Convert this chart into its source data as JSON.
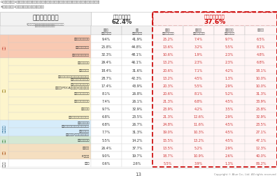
{
  "title_line1": "Q.新入社員時代（1年間）に受講してきた研修（自社・人事部門主催）について、日々の仕事への実践度合いをお聞かせください。",
  "title_line2": "※新人社員時代（1年間）を振り返りお聞かせください。",
  "col_header_left": "仕事への実践度",
  "col_header_sub1": "※各研修プログラム後の効果測定を個人の能力に転化した場合の合計平均",
  "col_header_sub2": "（「覚悟し（いない）」の回答を省く）",
  "col_header_doing": "実践している",
  "col_doing_pct": "62.4%",
  "col_header_not": "実践していない",
  "col_not_pct": "37.6%",
  "sub_cols": [
    "いつも\n実践している",
    "やや\n実践している",
    "あまり\n実践していない",
    "まったく\n実践していない",
    "研修内容を\n覚えていない",
    "受講なし"
  ],
  "categories": [
    {
      "label": "企業理念・文化理解",
      "group": "共通",
      "values": [
        "9.4%",
        "41.9%",
        "25.2%",
        "7.4%",
        "9.7%",
        "6.5%"
      ]
    },
    {
      "label": "コンプライアンス",
      "group": "共通",
      "values": [
        "25.8%",
        "44.8%",
        "13.6%",
        "3.2%",
        "5.5%",
        "8.1%"
      ]
    },
    {
      "label": "社会人の常識・モラル",
      "group": "共通",
      "values": [
        "32.3%",
        "48.1%",
        "10.6%",
        "1.9%",
        "2.3%",
        "4.8%"
      ]
    },
    {
      "label": "ビジネスマナー",
      "group": "対人",
      "values": [
        "29.4%",
        "46.1%",
        "13.2%",
        "2.3%",
        "2.3%",
        "6.8%"
      ]
    },
    {
      "label": "ビジネス文書",
      "group": "対人",
      "values": [
        "18.4%",
        "31.6%",
        "20.6%",
        "7.1%",
        "4.2%",
        "18.1%"
      ]
    },
    {
      "label": "ビジネスコミュニケーションの基本動作\n（報告・連絡・相談等）",
      "group": "対人",
      "values": [
        "28.7%",
        "42.3%",
        "13.2%",
        "4.5%",
        "1.3%",
        "10.0%"
      ]
    },
    {
      "label": "仕事の進め方の基本動作\n（段取り/PDCAサイクル/目標設定等）",
      "group": "対人",
      "values": [
        "17.4%",
        "43.9%",
        "20.3%",
        "5.5%",
        "2.9%",
        "10.0%"
      ]
    },
    {
      "label": "チームビルディング",
      "group": "対人",
      "values": [
        "8.1%",
        "26.8%",
        "20.6%",
        "8.1%",
        "5.2%",
        "31.3%"
      ]
    },
    {
      "label": "ロジカルシンキング",
      "group": "対人",
      "values": [
        "7.4%",
        "26.1%",
        "21.3%",
        "6.8%",
        "4.5%",
        "33.9%"
      ]
    },
    {
      "label": "問題解決力",
      "group": "対人",
      "values": [
        "9.7%",
        "32.9%",
        "23.9%",
        "4.2%",
        "3.5%",
        "25.8%"
      ]
    },
    {
      "label": "プレゼンテーションスキル",
      "group": "対人",
      "values": [
        "6.8%",
        "23.5%",
        "21.3%",
        "12.6%",
        "2.9%",
        "32.9%"
      ]
    },
    {
      "label": "モチベーション\n（モチベーションマネジメント等）",
      "group": "キャリア",
      "values": [
        "6.8%",
        "26.7%",
        "24.8%",
        "11.6%",
        "4.5%",
        "23.5%"
      ]
    },
    {
      "label": "キャリア開発\n（自己理解/キャリア開発等）",
      "group": "キャリア",
      "values": [
        "7.7%",
        "31.3%",
        "19.0%",
        "10.3%",
        "4.5%",
        "27.1%"
      ]
    },
    {
      "label": "語学（英語等）",
      "group": "語学",
      "values": [
        "5.5%",
        "14.2%",
        "15.5%",
        "13.2%",
        "4.5%",
        "47.1%"
      ]
    },
    {
      "label": "業務知識",
      "group": "専門",
      "values": [
        "26.4%",
        "37.7%",
        "13.5%",
        "5.2%",
        "2.9%",
        "12.3%"
      ]
    },
    {
      "label": "ITスキル",
      "group": "専門",
      "values": [
        "9.0%",
        "19.7%",
        "18.7%",
        "10.9%",
        "2.6%",
        "40.0%"
      ]
    },
    {
      "label": "その他",
      "group": "その他",
      "values": [
        "0.6%",
        "2.6%",
        "5.5%",
        "3.9%",
        "1.3%",
        "86.2%"
      ]
    }
  ],
  "group_colors": {
    "共通": "#f9c9b2",
    "対人": "#fdf5cc",
    "キャリア": "#d6ecfa",
    "語学": "#d5e8d4",
    "専門": "#f5dfc0",
    "その他": "#ffffff"
  },
  "group_label_colors": {
    "共通": "#c0392b",
    "対人": "#8a6d00",
    "キャリア": "#1a5f8a",
    "語学": "#2e7d32",
    "専門": "#a04000",
    "その他": "#555555"
  },
  "page_num": "13",
  "copyright": "Copyright © Alue Co., Ltd. All rights reserved",
  "bg_color": "#ffffff"
}
